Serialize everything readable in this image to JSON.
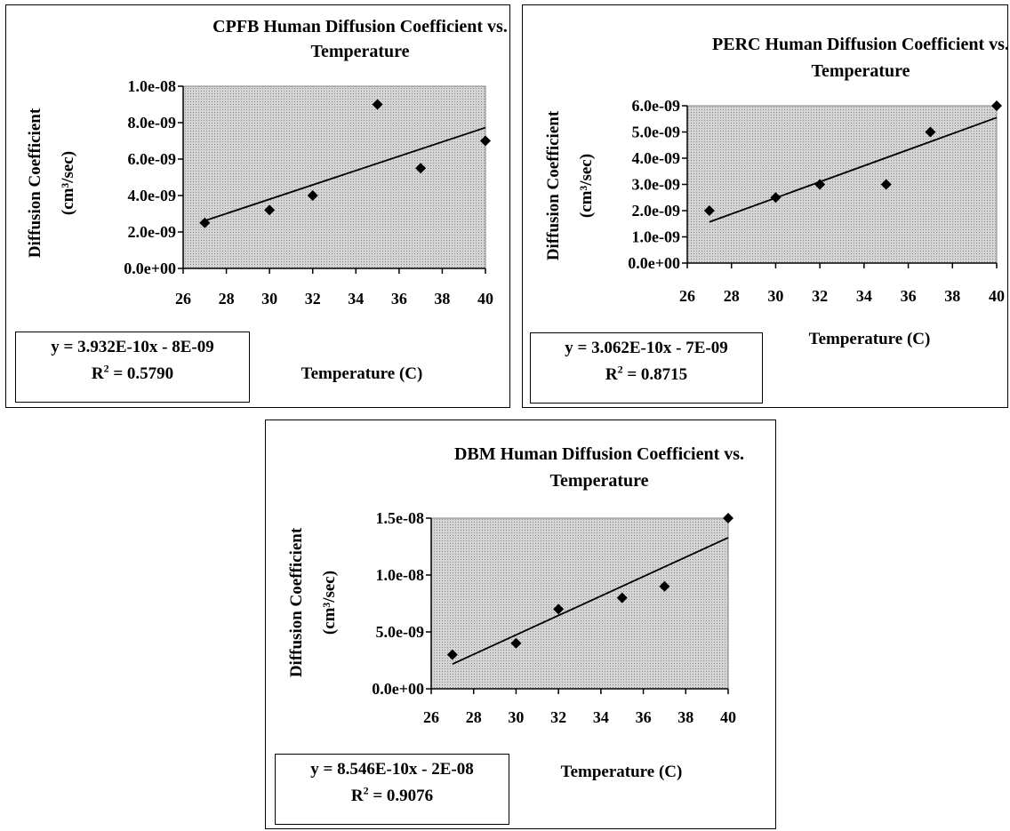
{
  "chart_data": [
    {
      "type": "scatter",
      "title": "CPFB Human Diffusion Coefficient vs. Temperature",
      "title_lines": [
        "CPFB Human Diffusion Coefficient vs.",
        "Temperature"
      ],
      "xlabel": "Temperature (C)",
      "ylabel": "Diffusion Coefficient",
      "ylabel_unit": "(cm³/sec)",
      "x": [
        27,
        30,
        32,
        35,
        37,
        40
      ],
      "y": [
        2.5e-09,
        3.2e-09,
        4e-09,
        9e-09,
        5.5e-09,
        7e-09
      ],
      "xlim": [
        26,
        40
      ],
      "ylim": [
        0,
        1e-08
      ],
      "xticks": [
        26,
        28,
        30,
        32,
        34,
        36,
        38,
        40
      ],
      "yticks": [
        0,
        2e-09,
        4e-09,
        6e-09,
        8e-09,
        1e-08
      ],
      "ytick_labels": [
        "0.0e+00",
        "2.0e-09",
        "4.0e-09",
        "6.0e-09",
        "8.0e-09",
        "1.0e-08"
      ],
      "trendline": {
        "slope": 3.932e-10,
        "intercept": -8e-09
      },
      "equation": "y = 3.932E-10x - 8E-09",
      "r2_label": "R",
      "r2_value": " = 0.5790",
      "grid": false,
      "plot_background": "#c9c9c9"
    },
    {
      "type": "scatter",
      "title": "PERC Human Diffusion Coefficient vs. Temperature",
      "title_lines": [
        "PERC Human Diffusion Coefficient vs.",
        "Temperature"
      ],
      "xlabel": "Temperature (C)",
      "ylabel": "Diffusion Coefficient",
      "ylabel_unit": "(cm³/sec)",
      "x": [
        27,
        30,
        32,
        35,
        37,
        40
      ],
      "y": [
        2e-09,
        2.5e-09,
        3e-09,
        3e-09,
        5e-09,
        6e-09
      ],
      "xlim": [
        26,
        40
      ],
      "ylim": [
        0,
        6e-09
      ],
      "xticks": [
        26,
        28,
        30,
        32,
        34,
        36,
        38,
        40
      ],
      "yticks": [
        0,
        1e-09,
        2e-09,
        3e-09,
        4e-09,
        5e-09,
        6e-09
      ],
      "ytick_labels": [
        "0.0e+00",
        "1.0e-09",
        "2.0e-09",
        "3.0e-09",
        "4.0e-09",
        "5.0e-09",
        "6.0e-09"
      ],
      "trendline": {
        "slope": 3.062e-10,
        "intercept": -6.7e-09
      },
      "equation": "y = 3.062E-10x - 7E-09",
      "r2_label": "R",
      "r2_value": " = 0.8715",
      "grid": false,
      "plot_background": "#c9c9c9"
    },
    {
      "type": "scatter",
      "title": "DBM Human Diffusion Coefficient vs. Temperature",
      "title_lines": [
        "DBM Human Diffusion Coefficient vs.",
        "Temperature"
      ],
      "xlabel": "Temperature (C)",
      "ylabel": "Diffusion Coefficient",
      "ylabel_unit": "(cm³/sec)",
      "x": [
        27,
        30,
        32,
        35,
        37,
        40
      ],
      "y": [
        3e-09,
        4e-09,
        7e-09,
        8e-09,
        9e-09,
        1.5e-08
      ],
      "xlim": [
        26,
        40
      ],
      "ylim": [
        0,
        1.5e-08
      ],
      "xticks": [
        26,
        28,
        30,
        32,
        34,
        36,
        38,
        40
      ],
      "yticks": [
        0,
        5e-09,
        1e-08,
        1.5e-08
      ],
      "ytick_labels": [
        "0.0e+00",
        "5.0e-09",
        "1.0e-08",
        "1.5e-08"
      ],
      "trendline": {
        "slope": 8.546e-10,
        "intercept": -2.09e-08
      },
      "equation": "y = 8.546E-10x - 2E-08",
      "r2_label": "R",
      "r2_value": " = 0.9076",
      "grid": false,
      "plot_background": "#c9c9c9"
    }
  ]
}
